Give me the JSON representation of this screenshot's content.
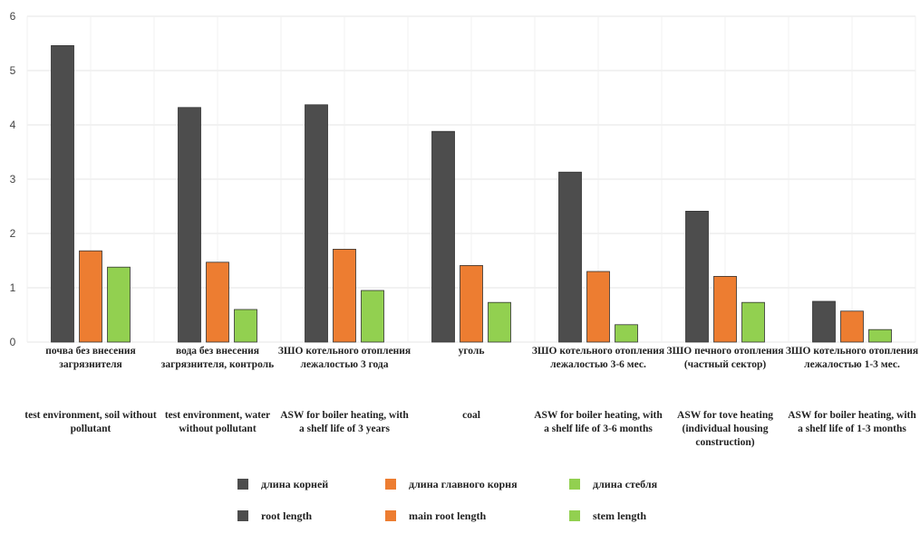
{
  "chart_data": {
    "type": "bar",
    "categories": [
      "почва без внесения загрязнителя",
      "вода без внесения загрязнителя, контроль",
      "ЗШО котельного отопления лежалостью 3 года",
      "уголь",
      "ЗШО котельного отопления лежалостью 3-6 мес.",
      "ЗШО печного отопления (частный сектор)",
      "ЗШО котельного отопления лежалостью 1-3 мес."
    ],
    "categories_en": [
      "test environment, soil without pollutant",
      "test environment, water without pollutant",
      "ASW for boiler heating, with a shelf life of 3 years",
      "coal",
      "ASW for boiler heating, with a shelf life of 3-6 months",
      "ASW for tove heating (individual housing construction)",
      "ASW for boiler heating, with a shelf life of 1-3 months"
    ],
    "series": [
      {
        "name": "длина корней",
        "name_en": "root length",
        "color": "#4d4d4d",
        "values": [
          5.46,
          4.32,
          4.37,
          3.88,
          3.13,
          2.41,
          0.75
        ]
      },
      {
        "name": "длина главного корня",
        "name_en": "main root length",
        "color": "#ed7d31",
        "values": [
          1.68,
          1.47,
          1.71,
          1.41,
          1.3,
          1.21,
          0.57
        ]
      },
      {
        "name": "длина стебля",
        "name_en": "stem length",
        "color": "#92d050",
        "values": [
          1.38,
          0.6,
          0.95,
          0.73,
          0.32,
          0.73,
          0.23
        ]
      }
    ],
    "yticks": [
      0,
      1,
      2,
      3,
      4,
      5,
      6
    ],
    "ylim": [
      0,
      6
    ],
    "grid": true,
    "legend_position": "bottom"
  }
}
